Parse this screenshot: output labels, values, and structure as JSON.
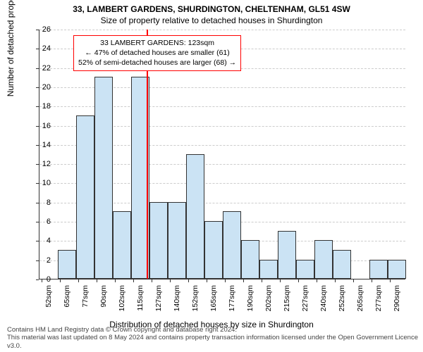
{
  "title_main": "33, LAMBERT GARDENS, SHURDINGTON, CHELTENHAM, GL51 4SW",
  "title_sub": "Size of property relative to detached houses in Shurdington",
  "y_axis_label": "Number of detached properties",
  "x_axis_label": "Distribution of detached houses by size in Shurdington",
  "footer_line1": "Contains HM Land Registry data © Crown copyright and database right 2024.",
  "footer_line2": "This material was last updated on 8 May 2024 and contains property transaction information licensed under the Open Government Licence v3.0.",
  "chart": {
    "type": "histogram",
    "background_color": "#ffffff",
    "grid_color": "#cccccc",
    "axis_color": "#333333",
    "bar_fill": "#cbe3f4",
    "bar_stroke": "#333333",
    "marker_color": "#ff0000",
    "marker_x": 123,
    "annotation_border": "#ff0000",
    "annotation_lines": [
      "33 LAMBERT GARDENS: 123sqm",
      "← 47% of detached houses are smaller (61)",
      "52% of semi-detached houses are larger (68) →"
    ],
    "title_fontsize": 12,
    "label_fontsize": 12,
    "tick_fontsize": 11,
    "ylim": [
      0,
      26
    ],
    "ytick_step": 2,
    "xlim": [
      50,
      300
    ],
    "xtick_start": 52,
    "xtick_step": 12.5,
    "xtick_count": 21,
    "bin_width": 12.5,
    "bins": [
      {
        "start": 50.0,
        "count": 0
      },
      {
        "start": 62.5,
        "count": 3
      },
      {
        "start": 75.0,
        "count": 17
      },
      {
        "start": 87.5,
        "count": 21
      },
      {
        "start": 100.0,
        "count": 7
      },
      {
        "start": 112.5,
        "count": 21
      },
      {
        "start": 125.0,
        "count": 8
      },
      {
        "start": 137.5,
        "count": 8
      },
      {
        "start": 150.0,
        "count": 13
      },
      {
        "start": 162.5,
        "count": 6
      },
      {
        "start": 175.0,
        "count": 7
      },
      {
        "start": 187.5,
        "count": 4
      },
      {
        "start": 200.0,
        "count": 2
      },
      {
        "start": 212.5,
        "count": 5
      },
      {
        "start": 225.0,
        "count": 2
      },
      {
        "start": 237.5,
        "count": 4
      },
      {
        "start": 250.0,
        "count": 3
      },
      {
        "start": 262.5,
        "count": 0
      },
      {
        "start": 275.0,
        "count": 2
      },
      {
        "start": 287.5,
        "count": 2
      }
    ]
  }
}
